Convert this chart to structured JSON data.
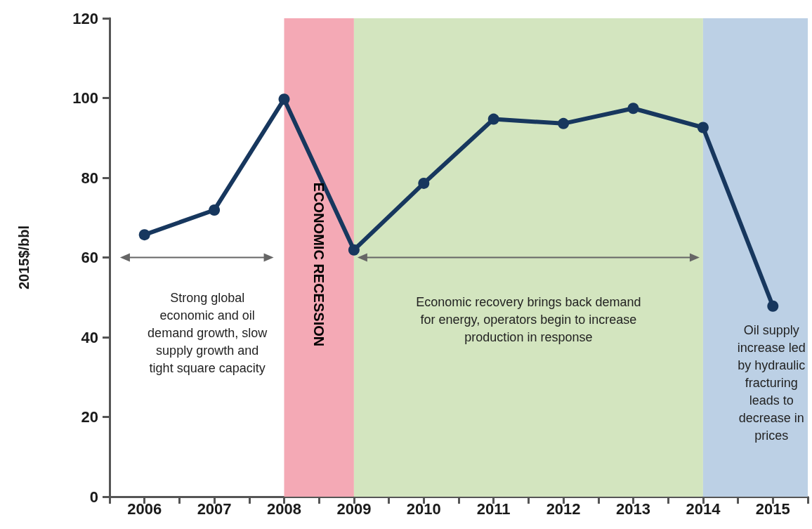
{
  "chart_data": {
    "type": "line",
    "ylabel": "2015$/bbl",
    "x": [
      2006,
      2007,
      2008,
      2009,
      2010,
      2011,
      2012,
      2013,
      2014,
      2015
    ],
    "series": [
      {
        "color": "#17375e",
        "values": [
          65.7,
          71.9,
          99.7,
          61.9,
          78.6,
          94.7,
          93.6,
          97.4,
          92.6,
          47.8
        ]
      }
    ],
    "xlim": [
      2005.5,
      2015.5
    ],
    "xticks": [
      {
        "value": 2005.5,
        "label": null
      },
      2006,
      {
        "value": 2006.5,
        "label": null
      },
      2007,
      {
        "value": 2007.5,
        "label": null
      },
      2008,
      {
        "value": 2008.5,
        "label": null
      },
      2009,
      {
        "value": 2009.5,
        "label": null
      },
      2010,
      {
        "value": 2010.5,
        "label": null
      },
      2011,
      {
        "value": 2011.5,
        "label": null
      },
      2012,
      {
        "value": 2012.5,
        "label": null
      },
      2013,
      {
        "value": 2013.5,
        "label": null
      },
      2014,
      {
        "value": 2014.5,
        "label": null
      },
      2015,
      {
        "value": 2015.5,
        "label": null
      }
    ],
    "ylim": [
      0,
      120
    ],
    "yticks": [
      0,
      20,
      40,
      60,
      80,
      100,
      120
    ],
    "bands": [
      {
        "axis": "x",
        "from": 2008,
        "to": 2009,
        "label": "ECONOMIC RECESSION",
        "color": "#f4a9b5"
      },
      {
        "axis": "x",
        "from": 2009,
        "to": 2014,
        "label": null,
        "color": "#d3e5bf"
      },
      {
        "axis": "x",
        "from": 2014,
        "to": 2015.5,
        "label": null,
        "color": "#bcd0e5"
      }
    ],
    "annotations": [
      "Strong global\neconomic and oil\ndemand growth, slow\nsupply growth and\ntight square capacity",
      "Economic recovery brings back demand\nfor energy, operators begin to increase\nproduction in response",
      "Oil supply\nincrease led\nby hydraulic\nfracturing\nleads to\ndecrease in\nprices"
    ],
    "marker": "circle",
    "line_style": "solid",
    "grid": false
  }
}
